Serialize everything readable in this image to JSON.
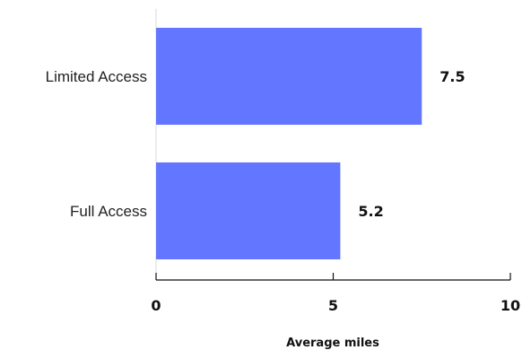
{
  "chart_data": {
    "type": "bar",
    "orientation": "horizontal",
    "categories": [
      "Limited Access",
      "Full Access"
    ],
    "values": [
      7.5,
      5.2
    ],
    "value_labels": [
      "7.5",
      "5.2"
    ],
    "xlabel": "Average miles",
    "xlim": [
      0,
      10
    ],
    "ticks": [
      0,
      5,
      10
    ],
    "tick_labels": [
      "0",
      "5",
      "10"
    ],
    "bar_color": "#6276ff",
    "grid": false,
    "legend": "none"
  }
}
